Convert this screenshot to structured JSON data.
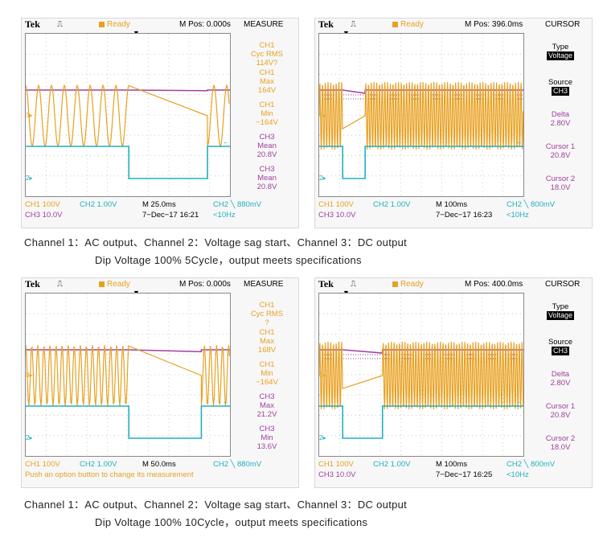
{
  "chart_data": [
    {
      "type": "line",
      "header": {
        "brand": "Tek",
        "status": "Ready",
        "mpos": "M Pos: 0.000s",
        "right_title": "MEASURE"
      },
      "measurements": [
        {
          "ch": "CH1",
          "label": "Cyc RMS",
          "value": "114V?",
          "color": "#e8a020"
        },
        {
          "ch": "CH1",
          "label": "Max",
          "value": "164V",
          "color": "#e8a020"
        },
        {
          "ch": "CH1",
          "label": "Min",
          "value": "−164V",
          "color": "#e8a020"
        },
        {
          "ch": "CH3",
          "label": "Mean",
          "value": "20.8V",
          "color": "#b040b0"
        },
        {
          "ch": "CH3",
          "label": "Mean",
          "value": "20.8V",
          "color": "#b040b0"
        }
      ],
      "footer": {
        "ch1": "CH1  100V",
        "ch2": "CH2  1.00V",
        "time": "M 25.0ms",
        "trig": "CH2 ╲ 880mV",
        "ch3": "CH3  10.0V",
        "date": "7−Dec−17 16:21",
        "freq": "<10Hz"
      },
      "ac_cycles_before": 8,
      "ac_gap_start": 0.505,
      "ac_gap_end": 0.89,
      "ac_cycles_after": 2,
      "sag_start": 0.505,
      "sag_end": 0.89,
      "dc_drop": 0.02
    },
    {
      "type": "line",
      "header": {
        "brand": "Tek",
        "status": "Ready",
        "mpos": "M Pos: 396.0ms",
        "right_title": "CURSOR"
      },
      "cursor": {
        "type_label": "Type",
        "type_value": "Voltage",
        "source_label": "Source",
        "source_value": "CH3",
        "delta_label": "Delta",
        "delta_value": "2.80V",
        "c1_label": "Cursor 1",
        "c1_value": "20.8V",
        "c2_label": "Cursor 2",
        "c2_value": "18.0V"
      },
      "footer": {
        "ch1": "CH1  100V",
        "ch2": "CH2  1.00V",
        "time": "M 100ms",
        "trig": "CH2 ╲ 800mV",
        "ch3": "CH3  10.0V",
        "date": "7−Dec−17 16:23",
        "freq": "<10Hz"
      },
      "ac_density": 75,
      "ac_gap_start": 0.115,
      "ac_gap_end": 0.225,
      "sag_start": 0.115,
      "sag_end": 0.225,
      "dc_drop": 0.1
    },
    {
      "type": "line",
      "header": {
        "brand": "Tek",
        "status": "Ready",
        "mpos": "M Pos: 0.000s",
        "right_title": "MEASURE"
      },
      "measurements": [
        {
          "ch": "CH1",
          "label": "Cyc RMS",
          "value": "?",
          "color": "#e8a020"
        },
        {
          "ch": "CH1",
          "label": "Max",
          "value": "168V",
          "color": "#e8a020"
        },
        {
          "ch": "CH1",
          "label": "Min",
          "value": "−164V",
          "color": "#e8a020"
        },
        {
          "ch": "CH3",
          "label": "Max",
          "value": "21.2V",
          "color": "#b040b0"
        },
        {
          "ch": "CH3",
          "label": "Min",
          "value": "13.6V",
          "color": "#b040b0"
        }
      ],
      "footer": {
        "ch1": "CH1  100V",
        "ch2": "CH2  1.00V",
        "time": "M 50.0ms",
        "trig": "CH2 ╲ 880mV",
        "hint": "Push an option button to change its measurement"
      },
      "ac_cycles_before": 17,
      "ac_gap_start": 0.505,
      "ac_gap_end": 0.86,
      "ac_cycles_after": 4,
      "sag_start": 0.505,
      "sag_end": 0.86,
      "dc_drop": 0.06
    },
    {
      "type": "line",
      "header": {
        "brand": "Tek",
        "status": "Ready",
        "mpos": "M Pos: 400.0ms",
        "right_title": "CURSOR"
      },
      "cursor": {
        "type_label": "Type",
        "type_value": "Voltage",
        "source_label": "Source",
        "source_value": "CH3",
        "delta_label": "Delta",
        "delta_value": "2.80V",
        "c1_label": "Cursor 1",
        "c1_value": "20.8V",
        "c2_label": "Cursor 2",
        "c2_value": "18.0V"
      },
      "footer": {
        "ch1": "CH1  100V",
        "ch2": "CH2  1.00V",
        "time": "M 100ms",
        "trig": "CH2 ╲ 800mV",
        "ch3": "CH3  10.0V",
        "date": "7−Dec−17 16:25",
        "freq": "<10Hz"
      },
      "ac_density": 75,
      "ac_gap_start": 0.115,
      "ac_gap_end": 0.31,
      "sag_start": 0.115,
      "sag_end": 0.31,
      "dc_drop": 0.1
    }
  ],
  "captions": {
    "line1_a": "Channel 1：AC output、Channel 2：Voltage sag start、Channel 3：DC output",
    "line2_a": "Dip Voltage 100% 5Cycle，output meets specifications",
    "line1_b": "Channel 1：AC output、Channel 2：Voltage sag start、Channel 3：DC output",
    "line2_b": "Dip Voltage 100% 10Cycle，output meets specifications"
  },
  "colors": {
    "ch1": "#e8a020",
    "ch2": "#20b0c0",
    "ch3": "#a040a0"
  }
}
